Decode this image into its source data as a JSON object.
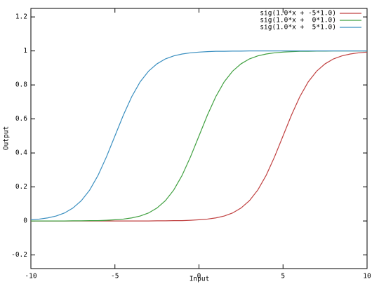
{
  "chart_data": {
    "type": "line",
    "xlabel": "Input",
    "ylabel": "Output",
    "x": [
      -10,
      -9.5,
      -9,
      -8.5,
      -8,
      -7.5,
      -7,
      -6.5,
      -6,
      -5.5,
      -5,
      -4.5,
      -4,
      -3.5,
      -3,
      -2.5,
      -2,
      -1.5,
      -1,
      -0.5,
      0,
      0.5,
      1,
      1.5,
      2,
      2.5,
      3,
      3.5,
      4,
      4.5,
      5,
      5.5,
      6,
      6.5,
      7,
      7.5,
      8,
      8.5,
      9,
      9.5,
      10
    ],
    "series": [
      {
        "name": "sig(1.0*x + -5*1.0)",
        "color": "#c04040",
        "values": [
          0,
          0,
          0,
          0,
          0,
          0,
          0,
          0,
          0,
          0,
          0,
          0,
          0,
          0,
          0,
          0.001,
          0.001,
          0.002,
          0.002,
          0.004,
          0.007,
          0.011,
          0.018,
          0.029,
          0.047,
          0.076,
          0.119,
          0.182,
          0.269,
          0.378,
          0.5,
          0.622,
          0.731,
          0.818,
          0.881,
          0.924,
          0.953,
          0.971,
          0.982,
          0.989,
          0.993
        ]
      },
      {
        "name": "sig(1.0*x +  0*1.0)",
        "color": "#40a040",
        "values": [
          0,
          0,
          0,
          0,
          0,
          0.001,
          0.001,
          0.002,
          0.002,
          0.004,
          0.007,
          0.011,
          0.018,
          0.029,
          0.047,
          0.076,
          0.119,
          0.182,
          0.269,
          0.378,
          0.5,
          0.622,
          0.731,
          0.818,
          0.881,
          0.924,
          0.953,
          0.971,
          0.982,
          0.989,
          0.993,
          0.996,
          0.998,
          0.998,
          0.999,
          0.999,
          1,
          1,
          1,
          1,
          1
        ]
      },
      {
        "name": "sig(1.0*x +  5*1.0)",
        "color": "#3a8fc0",
        "values": [
          0.007,
          0.011,
          0.018,
          0.029,
          0.047,
          0.076,
          0.119,
          0.182,
          0.269,
          0.378,
          0.5,
          0.622,
          0.731,
          0.818,
          0.881,
          0.924,
          0.953,
          0.971,
          0.982,
          0.989,
          0.993,
          0.996,
          0.998,
          0.998,
          0.999,
          0.999,
          1,
          1,
          1,
          1,
          1,
          1,
          1,
          1,
          1,
          1,
          1,
          1,
          1,
          1,
          1
        ]
      }
    ],
    "xlim": [
      -10,
      10
    ],
    "xticks": [
      -10,
      -5,
      0,
      5,
      10
    ],
    "ylim": [
      -0.28,
      1.25
    ],
    "yticks": [
      -0.2,
      0,
      0.2,
      0.4,
      0.6,
      0.8,
      1,
      1.2
    ],
    "legend": "top-right"
  }
}
